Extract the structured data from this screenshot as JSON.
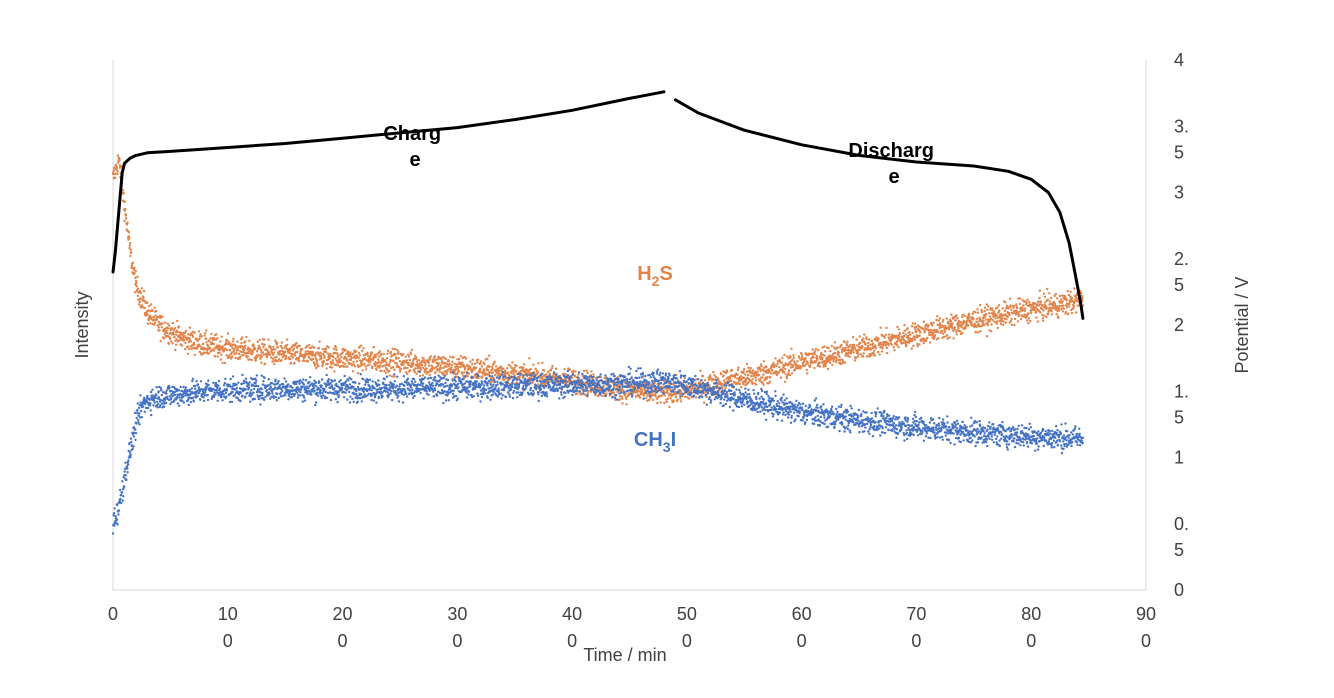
{
  "chart_data": {
    "type": "scatter",
    "xlabel": "Time / min",
    "ylabel_left": "Intensity",
    "ylabel_right": "Potential / V",
    "xlim": [
      0,
      900
    ],
    "xticks": [
      {
        "value": 0,
        "line1": "0",
        "line2": ""
      },
      {
        "value": 100,
        "line1": "10",
        "line2": "0"
      },
      {
        "value": 200,
        "line1": "20",
        "line2": "0"
      },
      {
        "value": 300,
        "line1": "30",
        "line2": "0"
      },
      {
        "value": 400,
        "line1": "40",
        "line2": "0"
      },
      {
        "value": 500,
        "line1": "50",
        "line2": "0"
      },
      {
        "value": 600,
        "line1": "60",
        "line2": "0"
      },
      {
        "value": 700,
        "line1": "70",
        "line2": "0"
      },
      {
        "value": 800,
        "line1": "80",
        "line2": "0"
      },
      {
        "value": 900,
        "line1": "90",
        "line2": "0"
      }
    ],
    "ylim_right": [
      0,
      4
    ],
    "yticks_right": [
      {
        "value": 0,
        "line1": "0",
        "line2": ""
      },
      {
        "value": 0.5,
        "line1": "0.",
        "line2": "5"
      },
      {
        "value": 1,
        "line1": "1",
        "line2": ""
      },
      {
        "value": 1.5,
        "line1": "1.",
        "line2": "5"
      },
      {
        "value": 2,
        "line1": "2",
        "line2": ""
      },
      {
        "value": 2.5,
        "line1": "2.",
        "line2": "5"
      },
      {
        "value": 3,
        "line1": "3",
        "line2": ""
      },
      {
        "value": 3.5,
        "line1": "3.",
        "line2": "5"
      },
      {
        "value": 4,
        "line1": "4",
        "line2": ""
      }
    ],
    "grid": false,
    "annotations": [
      {
        "line1": "Charg",
        "line2": "e"
      },
      {
        "line1": "Discharg",
        "line2": "e"
      }
    ],
    "series": [
      {
        "name": "H2S",
        "label_main": "H",
        "label_sub": "2",
        "label_end": "S",
        "color": "#E2844A",
        "axis": "intensity",
        "points": [
          [
            0,
            3.1
          ],
          [
            5,
            3.25
          ],
          [
            10,
            2.9
          ],
          [
            15,
            2.55
          ],
          [
            20,
            2.3
          ],
          [
            25,
            2.2
          ],
          [
            30,
            2.1
          ],
          [
            40,
            2.0
          ],
          [
            60,
            1.9
          ],
          [
            80,
            1.85
          ],
          [
            100,
            1.82
          ],
          [
            150,
            1.78
          ],
          [
            200,
            1.75
          ],
          [
            250,
            1.72
          ],
          [
            300,
            1.68
          ],
          [
            350,
            1.63
          ],
          [
            400,
            1.58
          ],
          [
            440,
            1.52
          ],
          [
            470,
            1.49
          ],
          [
            500,
            1.5
          ],
          [
            530,
            1.57
          ],
          [
            560,
            1.62
          ],
          [
            600,
            1.72
          ],
          [
            650,
            1.82
          ],
          [
            700,
            1.93
          ],
          [
            750,
            2.03
          ],
          [
            800,
            2.12
          ],
          [
            830,
            2.16
          ],
          [
            845,
            2.2
          ]
        ]
      },
      {
        "name": "CH3I",
        "label_main": "CH",
        "label_sub": "3",
        "label_end": "I",
        "color": "#4472C4",
        "axis": "intensity",
        "points": [
          [
            0,
            0.5
          ],
          [
            5,
            0.62
          ],
          [
            10,
            0.85
          ],
          [
            15,
            1.05
          ],
          [
            20,
            1.25
          ],
          [
            25,
            1.38
          ],
          [
            30,
            1.43
          ],
          [
            40,
            1.46
          ],
          [
            60,
            1.48
          ],
          [
            80,
            1.5
          ],
          [
            100,
            1.51
          ],
          [
            150,
            1.52
          ],
          [
            200,
            1.52
          ],
          [
            250,
            1.52
          ],
          [
            300,
            1.53
          ],
          [
            350,
            1.54
          ],
          [
            400,
            1.55
          ],
          [
            450,
            1.56
          ],
          [
            480,
            1.57
          ],
          [
            500,
            1.55
          ],
          [
            530,
            1.48
          ],
          [
            560,
            1.42
          ],
          [
            600,
            1.34
          ],
          [
            650,
            1.28
          ],
          [
            700,
            1.23
          ],
          [
            750,
            1.19
          ],
          [
            800,
            1.16
          ],
          [
            845,
            1.14
          ]
        ]
      },
      {
        "name": "Potential",
        "color": "#000000",
        "axis": "right",
        "segments": [
          [
            [
              0,
              2.4
            ],
            [
              2,
              2.55
            ],
            [
              4,
              2.75
            ],
            [
              6,
              2.95
            ],
            [
              8,
              3.15
            ],
            [
              10,
              3.22
            ],
            [
              15,
              3.26
            ],
            [
              20,
              3.28
            ],
            [
              30,
              3.3
            ],
            [
              50,
              3.31
            ],
            [
              100,
              3.34
            ],
            [
              150,
              3.37
            ],
            [
              200,
              3.41
            ],
            [
              250,
              3.45
            ],
            [
              300,
              3.49
            ],
            [
              350,
              3.55
            ],
            [
              400,
              3.62
            ],
            [
              450,
              3.71
            ],
            [
              480,
              3.76
            ]
          ],
          [
            [
              490,
              3.7
            ],
            [
              510,
              3.6
            ],
            [
              550,
              3.47
            ],
            [
              600,
              3.36
            ],
            [
              650,
              3.28
            ],
            [
              700,
              3.23
            ],
            [
              750,
              3.2
            ],
            [
              780,
              3.16
            ],
            [
              800,
              3.1
            ],
            [
              815,
              3.0
            ],
            [
              825,
              2.85
            ],
            [
              833,
              2.62
            ],
            [
              838,
              2.4
            ],
            [
              843,
              2.17
            ],
            [
              845,
              2.05
            ]
          ]
        ]
      }
    ]
  }
}
